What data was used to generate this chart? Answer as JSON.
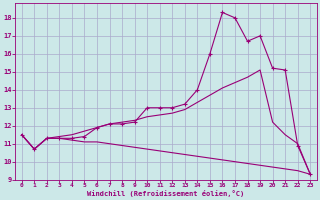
{
  "xlabel": "Windchill (Refroidissement éolien,°C)",
  "bg_color": "#cce8e8",
  "grid_color": "#aaaacc",
  "line_color": "#990077",
  "xlim": [
    -0.5,
    23.5
  ],
  "ylim": [
    9.0,
    18.8
  ],
  "yticks": [
    9,
    10,
    11,
    12,
    13,
    14,
    15,
    16,
    17,
    18
  ],
  "xticks": [
    0,
    1,
    2,
    3,
    4,
    5,
    6,
    7,
    8,
    9,
    10,
    11,
    12,
    13,
    14,
    15,
    16,
    17,
    18,
    19,
    20,
    21,
    22,
    23
  ],
  "line1_x": [
    0,
    1,
    2,
    3,
    4,
    5,
    6,
    7,
    8,
    9,
    10,
    11,
    12,
    13,
    14,
    15,
    16,
    17,
    18,
    19,
    20,
    21,
    22,
    23
  ],
  "line1_y": [
    11.5,
    10.7,
    11.3,
    11.3,
    11.2,
    11.1,
    11.1,
    11.0,
    10.9,
    10.8,
    10.7,
    10.6,
    10.5,
    10.4,
    10.3,
    10.2,
    10.1,
    10.0,
    9.9,
    9.8,
    9.7,
    9.6,
    9.5,
    9.3
  ],
  "line2_x": [
    0,
    1,
    2,
    3,
    4,
    5,
    6,
    7,
    8,
    9,
    10,
    11,
    12,
    13,
    14,
    15,
    16,
    17,
    18,
    19,
    20,
    21,
    22,
    23
  ],
  "line2_y": [
    11.5,
    10.7,
    11.3,
    11.3,
    11.3,
    11.4,
    11.9,
    12.1,
    12.1,
    12.2,
    13.0,
    13.0,
    13.0,
    13.2,
    14.0,
    16.0,
    18.3,
    18.0,
    16.7,
    17.0,
    15.2,
    15.1,
    10.9,
    9.3
  ],
  "line3_x": [
    0,
    1,
    2,
    3,
    4,
    5,
    6,
    7,
    8,
    9,
    10,
    11,
    12,
    13,
    14,
    15,
    16,
    17,
    18,
    19,
    20,
    21,
    22,
    23
  ],
  "line3_y": [
    11.5,
    10.7,
    11.3,
    11.4,
    11.5,
    11.7,
    11.9,
    12.1,
    12.2,
    12.3,
    12.5,
    12.6,
    12.7,
    12.9,
    13.3,
    13.7,
    14.1,
    14.4,
    14.7,
    15.1,
    12.2,
    11.5,
    11.0,
    9.3
  ]
}
